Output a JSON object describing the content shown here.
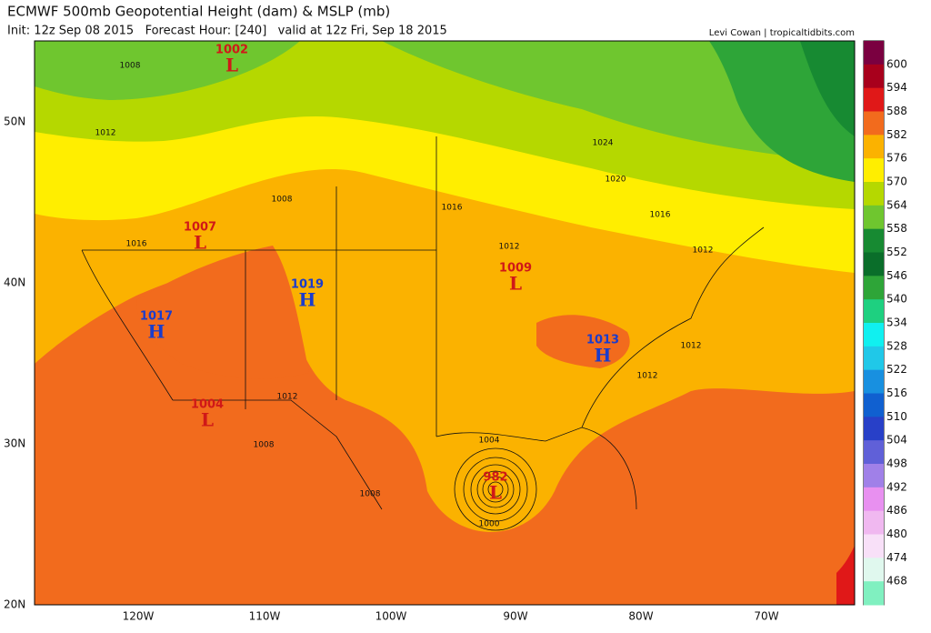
{
  "header": {
    "title": "ECMWF 500mb Geopotential Height (dam) & MSLP (mb)",
    "subtitle": "Init: 12z Sep 08 2015   Forecast Hour: [240]   valid at 12z Fri, Sep 18 2015",
    "credit": "Levi Cowan | tropicaltidbits.com"
  },
  "map": {
    "lat_labels": [
      "50N",
      "40N",
      "30N",
      "20N"
    ],
    "lon_labels": [
      "120W",
      "110W",
      "100W",
      "90W",
      "80W",
      "70W"
    ],
    "pressure_centers": [
      {
        "type": "L",
        "value": "1002"
      },
      {
        "type": "L",
        "value": "1007"
      },
      {
        "type": "H",
        "value": "1019"
      },
      {
        "type": "H",
        "value": "1017"
      },
      {
        "type": "L",
        "value": "1009"
      },
      {
        "type": "H",
        "value": "1013"
      },
      {
        "type": "L",
        "value": "1004"
      },
      {
        "type": "L",
        "value": "982"
      }
    ],
    "isobar_labels": [
      "1008",
      "1012",
      "1008",
      "1016",
      "1016",
      "1012",
      "1024",
      "1020",
      "1016",
      "1012",
      "1012",
      "1012",
      "1012",
      "1008",
      "1008",
      "1004",
      "1000"
    ]
  },
  "colorbar": {
    "labels": [
      "600",
      "594",
      "588",
      "582",
      "576",
      "570",
      "564",
      "558",
      "552",
      "546",
      "540",
      "534",
      "528",
      "522",
      "516",
      "510",
      "504",
      "498",
      "492",
      "486",
      "480",
      "474",
      "468"
    ]
  }
}
